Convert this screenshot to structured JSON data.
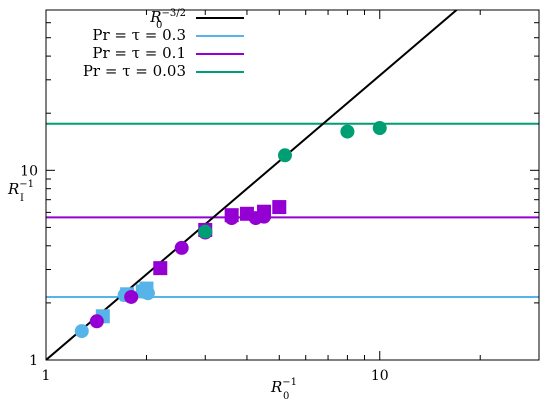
{
  "chart_data": {
    "type": "scatter",
    "x_scale": "log",
    "y_scale": "log",
    "xlim": [
      1,
      30
    ],
    "ylim": [
      1,
      70
    ],
    "x_ticks": [
      {
        "value": 1,
        "label": "1"
      },
      {
        "value": 10,
        "label": "10"
      }
    ],
    "y_ticks": [
      {
        "value": 1,
        "label": "1"
      },
      {
        "value": 10,
        "label": "10"
      }
    ],
    "xlabel": {
      "main": "R",
      "sub": "0",
      "sup": "−1"
    },
    "ylabel": {
      "main": "R",
      "sub": "I",
      "sup": "−1"
    },
    "legend_placement": "top-left",
    "reference_line": {
      "name": "R0^(-3/2)",
      "legend_main": "R",
      "legend_sub": "0",
      "legend_sup": "−3/2",
      "color": "#000000",
      "exponent": 1.5
    },
    "hlines": [
      {
        "name": "Pr = τ = 0.3",
        "color": "#56b4e9",
        "y": 2.15
      },
      {
        "name": "Pr = τ = 0.1",
        "color": "#9400d3",
        "y": 5.65
      },
      {
        "name": "Pr = τ = 0.03",
        "color": "#009e73",
        "y": 17.6
      }
    ],
    "series": [
      {
        "color": "#56b4e9",
        "circles": [
          [
            1.28,
            1.42
          ],
          [
            1.72,
            2.2
          ],
          [
            1.98,
            2.28
          ],
          [
            2.02,
            2.25
          ]
        ],
        "squares": [
          [
            1.48,
            1.7
          ],
          [
            1.75,
            2.22
          ],
          [
            1.95,
            2.3
          ],
          [
            2.0,
            2.38
          ]
        ]
      },
      {
        "color": "#9400d3",
        "circles": [
          [
            1.42,
            1.6
          ],
          [
            1.8,
            2.15
          ],
          [
            2.55,
            3.9
          ],
          [
            3.0,
            4.7
          ],
          [
            3.6,
            5.6
          ],
          [
            4.25,
            5.6
          ],
          [
            4.5,
            5.7
          ]
        ],
        "squares": [
          [
            2.2,
            3.05
          ],
          [
            3.0,
            4.85
          ],
          [
            3.6,
            5.8
          ],
          [
            4.0,
            5.9
          ],
          [
            4.5,
            6.05
          ],
          [
            5.0,
            6.4
          ]
        ]
      },
      {
        "color": "#009e73",
        "circles": [
          [
            3.0,
            4.75
          ],
          [
            5.2,
            12.0
          ],
          [
            8.0,
            16.0
          ],
          [
            10.0,
            16.7
          ]
        ],
        "squares": []
      }
    ]
  }
}
